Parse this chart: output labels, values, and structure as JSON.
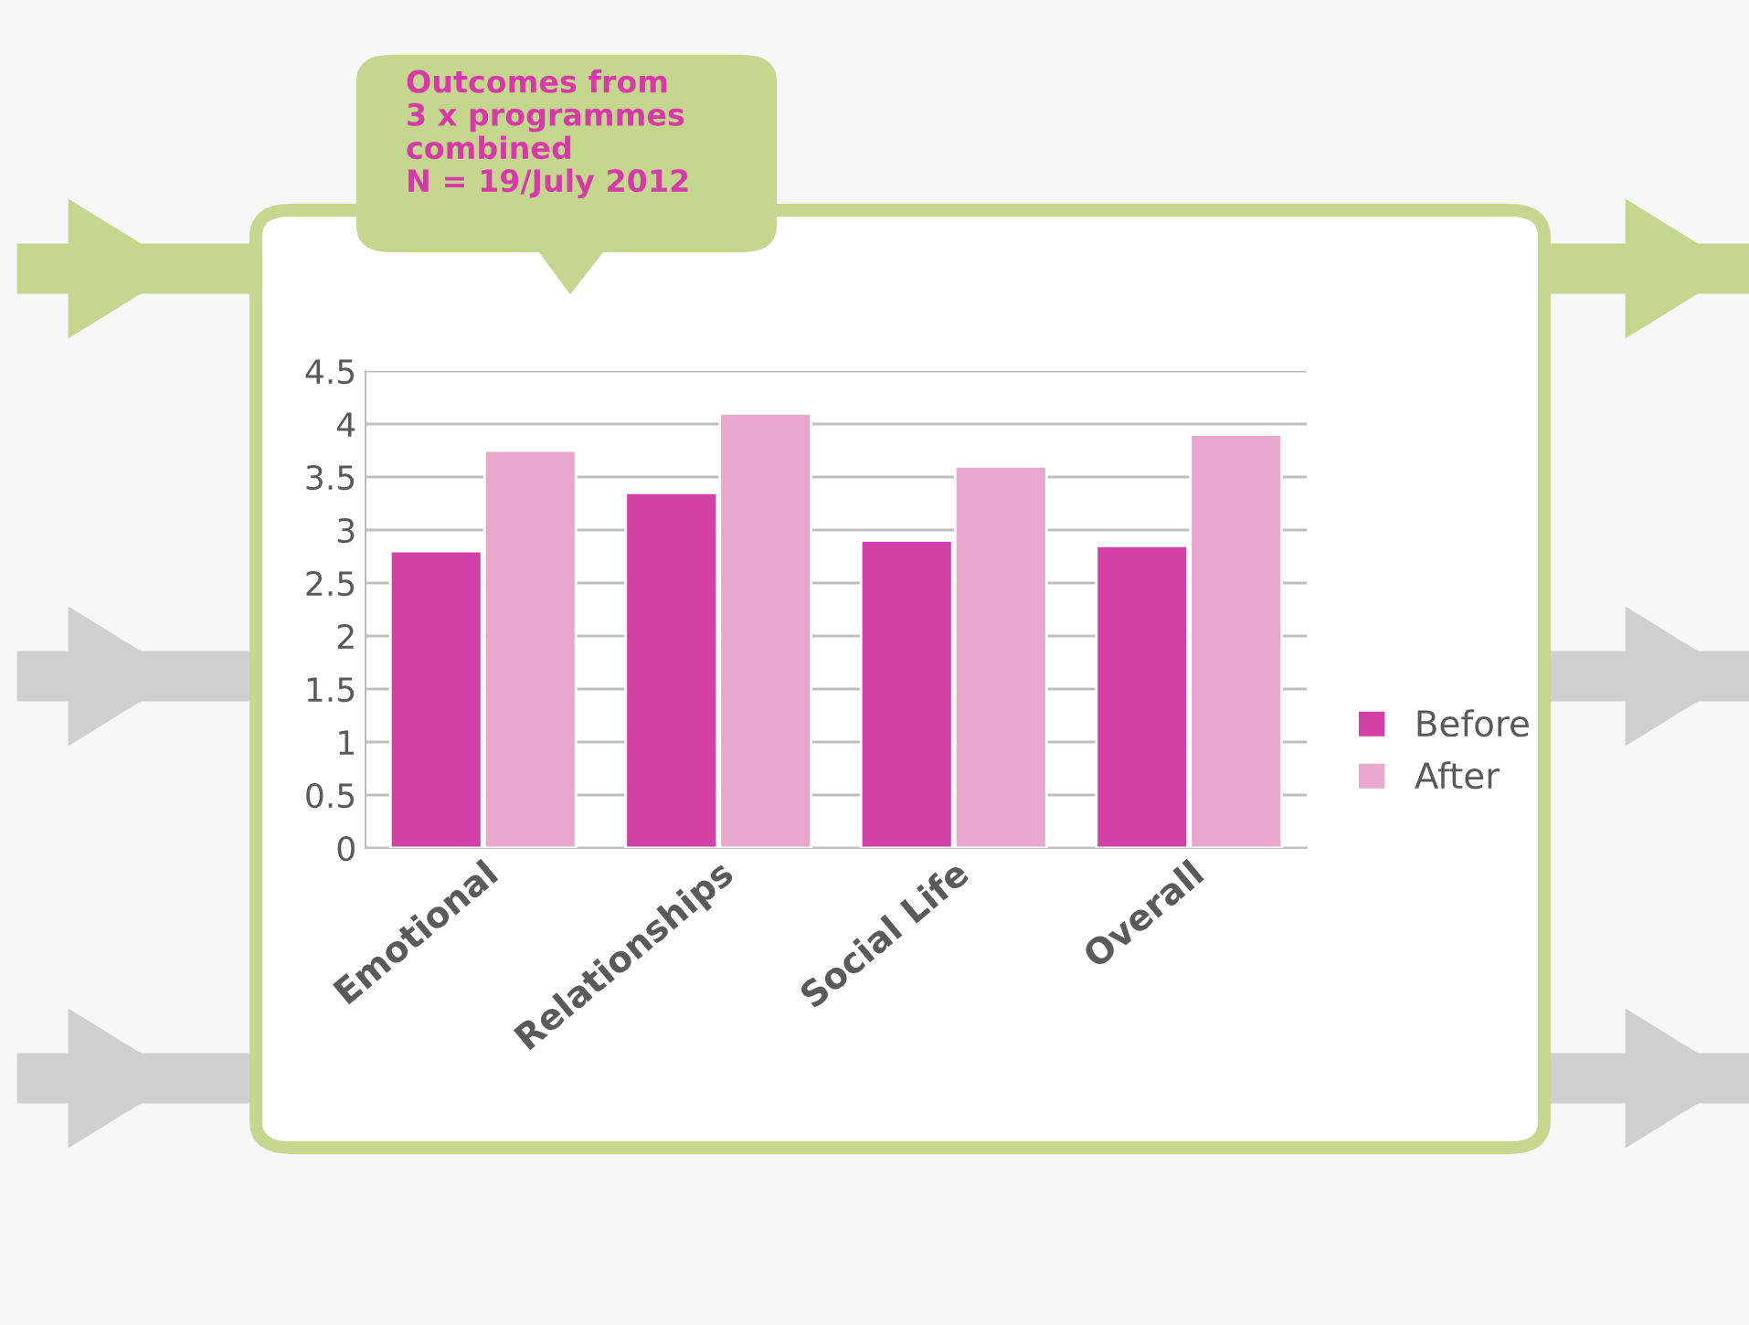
{
  "chart_data": {
    "type": "bar",
    "title": "Outcomes from\n3 x programmes\ncombined\nN = 19/July 2012",
    "categories": [
      "Emotional",
      "Relationships",
      "Social Life",
      "Overall"
    ],
    "series": [
      {
        "name": "Before",
        "color": "#d040a6",
        "values": [
          2.8,
          3.35,
          2.9,
          2.85
        ]
      },
      {
        "name": "After",
        "color": "#e8a8ce",
        "values": [
          3.75,
          4.1,
          3.6,
          3.9
        ]
      }
    ],
    "ylim": [
      0,
      4.5
    ],
    "yticks": [
      0,
      0.5,
      1,
      1.5,
      2,
      2.5,
      3,
      3.5,
      4,
      4.5
    ],
    "grid": "y",
    "legend": "right"
  }
}
